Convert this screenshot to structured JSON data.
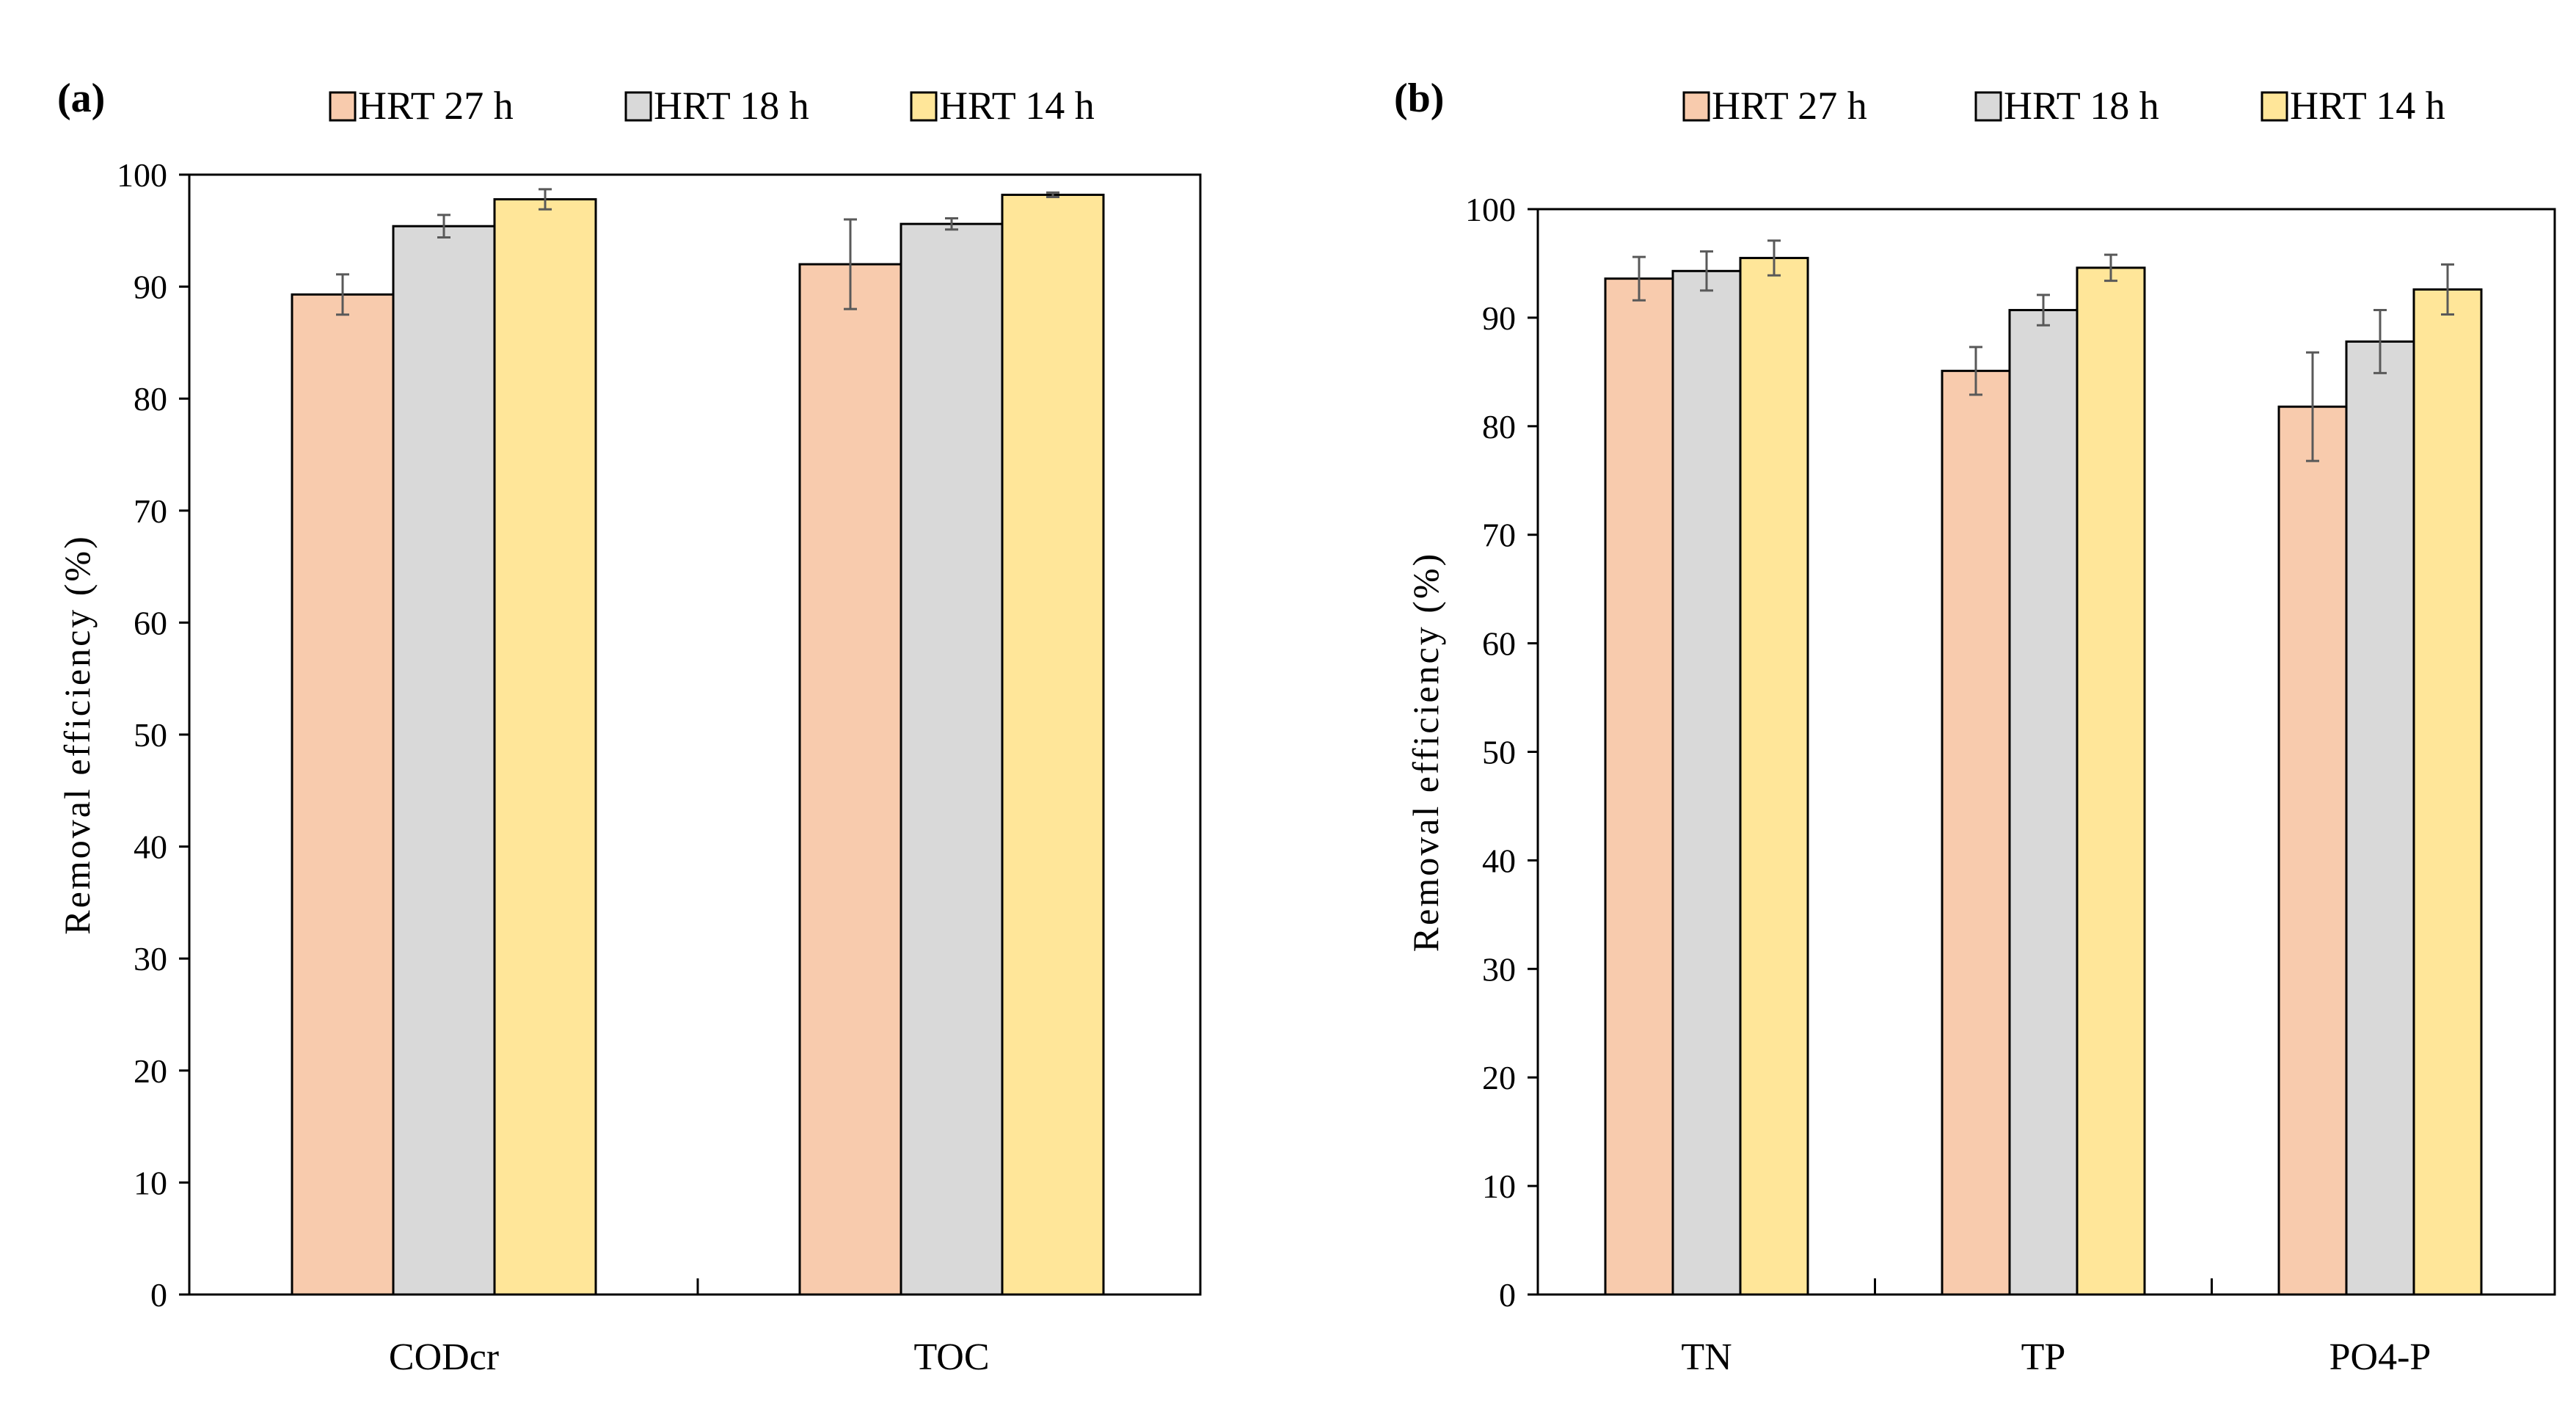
{
  "chart_data": [
    {
      "type": "bar",
      "panel_label": "(a)",
      "title": "",
      "xlabel": "",
      "ylabel": "Removal efficiency (%)",
      "ylim": [
        0,
        100
      ],
      "yticks": [
        "0",
        "10",
        "20",
        "30",
        "40",
        "50",
        "60",
        "70",
        "80",
        "90",
        "100"
      ],
      "grid": false,
      "legend_position": "top",
      "categories": [
        "CODcr",
        "TOC"
      ],
      "series": [
        {
          "name": "HRT 27 h",
          "color": "#F8CBAD",
          "values": [
            89.3,
            92.0
          ],
          "errors": [
            1.8,
            4.0
          ]
        },
        {
          "name": "HRT 18 h",
          "color": "#D9D9D9",
          "values": [
            95.4,
            95.6
          ],
          "errors": [
            1.0,
            0.5
          ]
        },
        {
          "name": "HRT 14 h",
          "color": "#FFE699",
          "values": [
            97.8,
            98.2
          ],
          "errors": [
            0.9,
            0.2
          ]
        }
      ]
    },
    {
      "type": "bar",
      "panel_label": "(b)",
      "title": "",
      "xlabel": "",
      "ylabel": "Removal efficiency (%)",
      "ylim": [
        0,
        100
      ],
      "yticks": [
        "0",
        "10",
        "20",
        "30",
        "40",
        "50",
        "60",
        "70",
        "80",
        "90",
        "100"
      ],
      "grid": false,
      "legend_position": "top",
      "categories": [
        "TN",
        "TP",
        "PO4-P"
      ],
      "series": [
        {
          "name": "HRT 27 h",
          "color": "#F8CBAD",
          "values": [
            93.6,
            85.1,
            81.8
          ],
          "errors": [
            2.0,
            2.2,
            5.0
          ]
        },
        {
          "name": "HRT 18 h",
          "color": "#D9D9D9",
          "values": [
            94.3,
            90.7,
            87.8
          ],
          "errors": [
            1.8,
            1.4,
            2.9
          ]
        },
        {
          "name": "HRT 14 h",
          "color": "#FFE699",
          "values": [
            95.5,
            94.6,
            92.6
          ],
          "errors": [
            1.6,
            1.2,
            2.3
          ]
        }
      ]
    }
  ]
}
